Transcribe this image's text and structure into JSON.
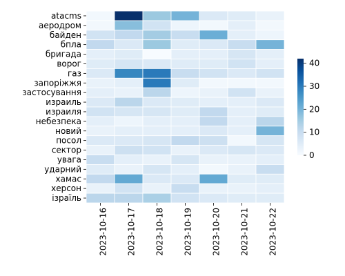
{
  "chart_data": {
    "type": "heatmap",
    "title": "",
    "xlabel": "",
    "ylabel": "",
    "x_categories": [
      "2023-10-16",
      "2023-10-17",
      "2023-10-18",
      "2023-10-19",
      "2023-10-20",
      "2023-10-21",
      "2023-10-22"
    ],
    "y_categories": [
      "atacms",
      "аеродром",
      "байден",
      "бпла",
      "бригада",
      "ворог",
      "газ",
      "запоріжжя",
      "застосування",
      "израиль",
      "израиля",
      "небезпека",
      "новий",
      "посол",
      "сектор",
      "увага",
      "ударний",
      "хамас",
      "херсон",
      "ізраїль"
    ],
    "values": [
      [
        1,
        42,
        16,
        20,
        6,
        5,
        3
      ],
      [
        1,
        18,
        8,
        2,
        1,
        4,
        1
      ],
      [
        8,
        11,
        15,
        10,
        21,
        4,
        2
      ],
      [
        11,
        6,
        16,
        5,
        6,
        10,
        20
      ],
      [
        4,
        5,
        0,
        4,
        4,
        7,
        4
      ],
      [
        5,
        7,
        6,
        5,
        5,
        8,
        4
      ],
      [
        6,
        28,
        30,
        10,
        8,
        6,
        8
      ],
      [
        3,
        4,
        30,
        5,
        1,
        1,
        1
      ],
      [
        4,
        3,
        12,
        2,
        3,
        8,
        3
      ],
      [
        6,
        12,
        6,
        5,
        4,
        4,
        6
      ],
      [
        8,
        7,
        7,
        5,
        11,
        4,
        5
      ],
      [
        4,
        2,
        4,
        4,
        11,
        4,
        12
      ],
      [
        3,
        4,
        4,
        4,
        6,
        4,
        20
      ],
      [
        6,
        6,
        7,
        11,
        9,
        1,
        7
      ],
      [
        3,
        9,
        8,
        3,
        6,
        7,
        6
      ],
      [
        10,
        4,
        3,
        7,
        3,
        3,
        4
      ],
      [
        5,
        3,
        7,
        4,
        1,
        3,
        10
      ],
      [
        11,
        22,
        6,
        6,
        22,
        5,
        5
      ],
      [
        3,
        8,
        3,
        10,
        3,
        3,
        4
      ],
      [
        12,
        12,
        14,
        8,
        6,
        5,
        5
      ]
    ],
    "colorbar": {
      "min": 0,
      "max": 42,
      "ticks": [
        0,
        10,
        20,
        30,
        40
      ]
    },
    "colormap": "Blues",
    "cell_border_color": "#ffffff"
  }
}
